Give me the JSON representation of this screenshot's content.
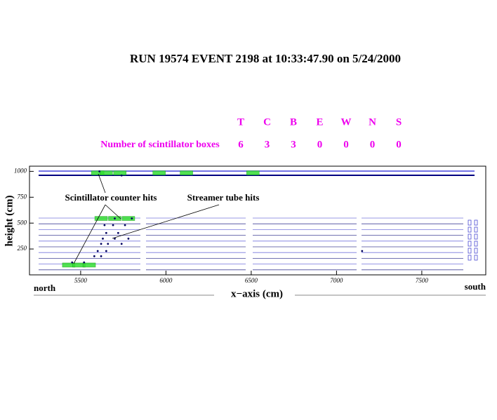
{
  "chart_data": {
    "type": "scatter",
    "title": "RUN 19574    EVENT 2198   at 10:33:47.90   on  5/24/2000",
    "xlabel": "x−axis (cm)",
    "ylabel": "height (cm)",
    "left_label": "north",
    "right_label": "south",
    "xlim": [
      5200,
      7875
    ],
    "ylim": [
      0,
      1050
    ],
    "xticks": [
      5500,
      6000,
      6500,
      7000,
      7500
    ],
    "yticks": [
      250,
      500,
      750,
      1000
    ],
    "box_table": {
      "row_label": "Number of scintillator boxes",
      "headers": [
        "T",
        "C",
        "B",
        "E",
        "W",
        "N",
        "S"
      ],
      "values": [
        6,
        3,
        3,
        0,
        0,
        0,
        0
      ]
    },
    "annotations": [
      "Scintillator counter hits",
      "Streamer tube hits"
    ],
    "series": [
      {
        "name": "Scintillator counter hits",
        "color": "#33dd33",
        "x": [
          5600,
          5650,
          5730,
          5960,
          6120,
          6510,
          5620,
          5700,
          5780,
          5430,
          5490,
          5550
        ],
        "values": [
          985,
          985,
          985,
          985,
          985,
          985,
          545,
          545,
          545,
          95,
          95,
          95
        ]
      },
      {
        "name": "Streamer tube hits",
        "color": "#000060",
        "x": [
          5610,
          5740,
          5700,
          5800,
          5640,
          5690,
          5760,
          5650,
          5720,
          5630,
          5700,
          5780,
          5620,
          5660,
          5740,
          5600,
          5650,
          5580,
          5620,
          5450,
          5520,
          7150
        ],
        "values": [
          1000,
          960,
          545,
          545,
          480,
          480,
          480,
          405,
          405,
          350,
          350,
          350,
          300,
          300,
          300,
          230,
          230,
          180,
          180,
          120,
          120,
          230
        ]
      }
    ]
  }
}
